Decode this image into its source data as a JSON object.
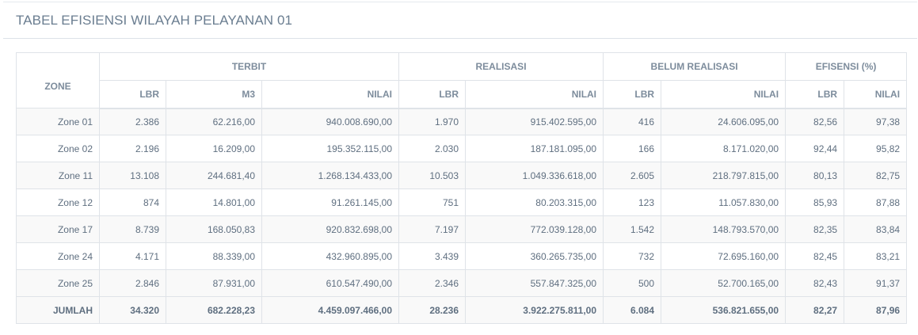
{
  "panel": {
    "title": "TABEL EFISIENSI WILAYAH PELAYANAN 01"
  },
  "table": {
    "group_headers": {
      "zone": "ZONE",
      "terbit": "TERBIT",
      "realisasi": "REALISASI",
      "belum_realisasi": "BELUM REALISASI",
      "efisensi": "EFISENSI (%)"
    },
    "sub_headers": [
      "LBR",
      "M3",
      "NILAI",
      "LBR",
      "NILAI",
      "LBR",
      "NILAI",
      "LBR",
      "NILAI"
    ],
    "rows": [
      [
        "Zone 01",
        "2.386",
        "62.216,00",
        "940.008.690,00",
        "1.970",
        "915.402.595,00",
        "416",
        "24.606.095,00",
        "82,56",
        "97,38"
      ],
      [
        "Zone 02",
        "2.196",
        "16.209,00",
        "195.352.115,00",
        "2.030",
        "187.181.095,00",
        "166",
        "8.171.020,00",
        "92,44",
        "95,82"
      ],
      [
        "Zone 11",
        "13.108",
        "244.681,40",
        "1.268.134.433,00",
        "10.503",
        "1.049.336.618,00",
        "2.605",
        "218.797.815,00",
        "80,13",
        "82,75"
      ],
      [
        "Zone 12",
        "874",
        "14.801,00",
        "91.261.145,00",
        "751",
        "80.203.315,00",
        "123",
        "11.057.830,00",
        "85,93",
        "87,88"
      ],
      [
        "Zone 17",
        "8.739",
        "168.050,83",
        "920.832.698,00",
        "7.197",
        "772.039.128,00",
        "1.542",
        "148.793.570,00",
        "82,35",
        "83,84"
      ],
      [
        "Zone 24",
        "4.171",
        "88.339,00",
        "432.960.895,00",
        "3.439",
        "360.265.735,00",
        "732",
        "72.695.160,00",
        "82,45",
        "83,21"
      ],
      [
        "Zone 25",
        "2.846",
        "87.931,00",
        "610.547.490,00",
        "2.346",
        "557.847.325,00",
        "500",
        "52.700.165,00",
        "82,43",
        "91,37"
      ]
    ],
    "total": [
      "JUMLAH",
      "34.320",
      "682.228,23",
      "4.459.097.466,00",
      "28.236",
      "3.922.275.811,00",
      "6.084",
      "536.821.655,00",
      "82,27",
      "87,96"
    ]
  }
}
